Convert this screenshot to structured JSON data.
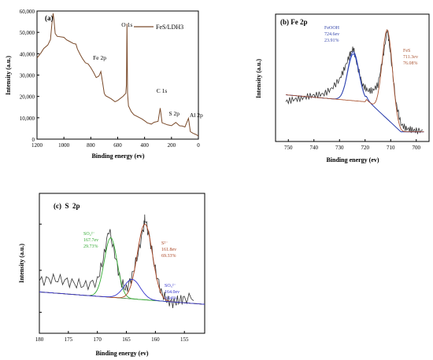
{
  "figure": {
    "panels": [
      {
        "id": "a",
        "panel_label": "(a)",
        "ylabel": "Intensity (a.u.)",
        "xlabel": "Binding energy (ev)",
        "legend": "FeS/LDH3",
        "yticks": [
          "0",
          "10,000",
          "20,000",
          "30,000",
          "40,000",
          "50,000",
          "60,000"
        ],
        "xticks": [
          "1200",
          "1000",
          "800",
          "600",
          "400",
          "200",
          "0"
        ],
        "annotations": [
          "O 1s",
          "Fe 2p",
          "C 1s",
          "S 2p",
          "Al 2p"
        ]
      },
      {
        "id": "b",
        "panel_label": "(b) Fe 2p",
        "ylabel": "Intensity (a.u.)",
        "xlabel": "Binding energy (ev)",
        "xticks": [
          "750",
          "740",
          "730",
          "720",
          "710",
          "700"
        ],
        "peak1": [
          "FeOOH",
          "724.6ev",
          "23.91%"
        ],
        "peak2": [
          "FeS",
          "711.3ev",
          "76.08%"
        ]
      },
      {
        "id": "c",
        "panel_label": "(c)  S  2p",
        "ylabel": "Intensity (a.u.)",
        "xlabel": "Binding energy (ev)",
        "xticks": [
          "180",
          "175",
          "170",
          "165",
          "160",
          "155"
        ],
        "peak1": [
          "SO₄²⁻",
          "167.7ev",
          "29.73%"
        ],
        "peak2": [
          "S²⁻",
          "161.8ev",
          "69.33%"
        ],
        "peak3": [
          "SO₃²⁻",
          "164.0ev",
          "0.94%"
        ]
      }
    ]
  },
  "colors": {
    "raw": "#333333",
    "survey": "#7a4a2a",
    "baseline_green": "#5a8a4a",
    "b_peak1": "#3344aa",
    "b_peak2": "#aa5533",
    "b_envelope": "#2244cc",
    "c_peak1": "#33aa33",
    "c_peak2": "#aa4422",
    "c_peak3": "#3333cc"
  },
  "chart_data": [
    {
      "type": "line",
      "panel": "a",
      "xlabel": "Binding energy (ev)",
      "ylabel": "Intensity (a.u.)",
      "xlim": [
        1200,
        0
      ],
      "ylim": [
        0,
        60000
      ],
      "grid": false,
      "legend_position": "top-right",
      "series": [
        {
          "name": "FeS/LDH3",
          "x": [
            1200,
            1170,
            1150,
            1120,
            1100,
            1090,
            1080,
            1072,
            1065,
            1050,
            1000,
            980,
            960,
            930,
            910,
            900,
            880,
            860,
            840,
            820,
            800,
            780,
            760,
            740,
            725,
            711,
            700,
            690,
            650,
            620,
            600,
            560,
            540,
            535,
            531,
            527,
            520,
            500,
            480,
            420,
            400,
            380,
            350,
            330,
            300,
            284,
            270,
            230,
            200,
            168,
            140,
            118,
            100,
            74,
            60,
            40,
            20,
            0
          ],
          "y": [
            38000,
            40000,
            42000,
            44000,
            47000,
            54000,
            59000,
            54000,
            49000,
            48000,
            48000,
            47000,
            46000,
            44500,
            44000,
            42000,
            40000,
            38000,
            36000,
            35000,
            33000,
            31000,
            29000,
            30000,
            32000,
            26000,
            21000,
            20000,
            19000,
            18000,
            18500,
            20000,
            21000,
            25000,
            54000,
            22000,
            16000,
            13000,
            11000,
            9000,
            8500,
            8000,
            7500,
            8000,
            8000,
            14000,
            7500,
            7000,
            6800,
            8000,
            6000,
            5600,
            5400,
            10000,
            4000,
            3000,
            2000,
            1000
          ]
        }
      ],
      "annotations": [
        {
          "text": "O 1s",
          "x": 531
        },
        {
          "text": "Fe 2p",
          "x": 711
        },
        {
          "text": "C 1s",
          "x": 284
        },
        {
          "text": "S 2p",
          "x": 168
        },
        {
          "text": "Al 2p",
          "x": 74
        }
      ]
    },
    {
      "type": "line",
      "panel": "b",
      "xlabel": "Binding energy (ev)",
      "ylabel": "Intensity (a.u.)",
      "xlim": [
        755,
        695
      ],
      "grid": false,
      "raw": {
        "x": [
          751,
          748,
          745,
          742,
          739,
          736,
          733,
          730,
          728,
          726,
          724.6,
          723,
          721,
          719,
          717,
          715,
          713,
          711.3,
          710,
          708,
          706,
          704,
          702,
          700,
          697
        ],
        "y": [
          0.3,
          0.32,
          0.33,
          0.35,
          0.36,
          0.37,
          0.42,
          0.5,
          0.6,
          0.72,
          0.78,
          0.62,
          0.45,
          0.4,
          0.4,
          0.45,
          0.7,
          0.95,
          0.72,
          0.3,
          0.1,
          0.06,
          0.05,
          0.04,
          0.04
        ]
      },
      "peaks": [
        {
          "label": "FeOOH",
          "center": 724.6,
          "area_percent": 23.91
        },
        {
          "label": "FeS",
          "center": 711.3,
          "area_percent": 76.08
        }
      ]
    },
    {
      "type": "line",
      "panel": "c",
      "xlabel": "Binding energy (ev)",
      "ylabel": "Intensity (a.u.)",
      "xlim": [
        180,
        151.5
      ],
      "grid": false,
      "raw": {
        "x": [
          180,
          178,
          176,
          174,
          172,
          170,
          169,
          168,
          167,
          166,
          165,
          164,
          163,
          162,
          161.8,
          161,
          160,
          159,
          158,
          157,
          156,
          155,
          153
        ],
        "y": [
          0.3,
          0.32,
          0.31,
          0.28,
          0.26,
          0.3,
          0.5,
          0.78,
          0.55,
          0.3,
          0.22,
          0.35,
          0.55,
          0.8,
          0.88,
          0.7,
          0.4,
          0.2,
          0.12,
          0.1,
          0.12,
          0.14,
          0.15
        ]
      },
      "peaks": [
        {
          "label": "SO4 2-",
          "center": 167.7,
          "area_percent": 29.73
        },
        {
          "label": "S 2-",
          "center": 161.8,
          "area_percent": 69.33
        },
        {
          "label": "SO3 2-",
          "center": 164.0,
          "area_percent": 0.94
        }
      ]
    }
  ]
}
